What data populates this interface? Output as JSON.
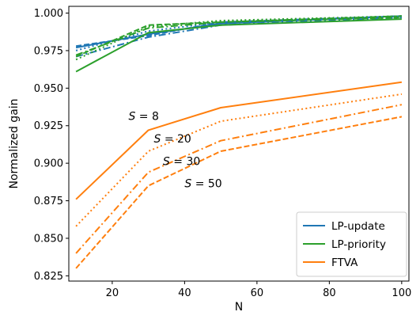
{
  "chart_data": {
    "type": "line",
    "title": "",
    "xlabel": "N",
    "ylabel": "Normalized gain",
    "xlim": [
      8,
      102
    ],
    "ylim": [
      0.8215,
      1.0045
    ],
    "xticks": [
      20,
      40,
      60,
      80,
      100
    ],
    "xtick_labels": [
      "20",
      "40",
      "60",
      "80",
      "100"
    ],
    "yticks": [
      0.825,
      0.85,
      0.875,
      0.9,
      0.925,
      0.95,
      0.975,
      1.0
    ],
    "ytick_labels": [
      "0.825",
      "0.850",
      "0.875",
      "0.900",
      "0.925",
      "0.950",
      "0.975",
      "1.000"
    ],
    "grid": false,
    "legend": {
      "placement": "lower-right",
      "entries": [
        {
          "label": "LP-update",
          "color": "#1f77b4"
        },
        {
          "label": "LP-priority",
          "color": "#2ca02c"
        },
        {
          "label": "FTVA",
          "color": "#ff7f0e"
        }
      ]
    },
    "annotations": [
      {
        "text": "S = 8",
        "x": 24.5,
        "y": 0.9315
      },
      {
        "text": "S = 20",
        "x": 31.5,
        "y": 0.9165
      },
      {
        "text": "S = 30",
        "x": 34,
        "y": 0.9015
      },
      {
        "text": "S = 50",
        "x": 40,
        "y": 0.8865
      }
    ],
    "series": [
      {
        "group": "LP-update",
        "S": 8,
        "style": "solid",
        "color": "#1f77b4",
        "x": [
          10,
          30,
          50,
          100
        ],
        "y": [
          0.977,
          0.986,
          0.993,
          0.998
        ]
      },
      {
        "group": "LP-update",
        "S": 20,
        "style": "dotted",
        "color": "#1f77b4",
        "x": [
          10,
          30,
          50,
          100
        ],
        "y": [
          0.975,
          0.988,
          0.994,
          0.998
        ]
      },
      {
        "group": "LP-update",
        "S": 30,
        "style": "dashdot",
        "color": "#1f77b4",
        "x": [
          10,
          30,
          50,
          100
        ],
        "y": [
          0.971,
          0.984,
          0.992,
          0.997
        ]
      },
      {
        "group": "LP-update",
        "S": 50,
        "style": "dashed",
        "color": "#1f77b4",
        "x": [
          10,
          30,
          50,
          100
        ],
        "y": [
          0.978,
          0.985,
          0.994,
          0.998
        ]
      },
      {
        "group": "LP-priority",
        "S": 8,
        "style": "solid",
        "color": "#2ca02c",
        "x": [
          10,
          30,
          50,
          100
        ],
        "y": [
          0.961,
          0.987,
          0.992,
          0.996
        ]
      },
      {
        "group": "LP-priority",
        "S": 20,
        "style": "dotted",
        "color": "#2ca02c",
        "x": [
          10,
          30,
          50,
          100
        ],
        "y": [
          0.969,
          0.991,
          0.995,
          0.998
        ]
      },
      {
        "group": "LP-priority",
        "S": 30,
        "style": "dashdot",
        "color": "#2ca02c",
        "x": [
          10,
          30,
          50,
          100
        ],
        "y": [
          0.972,
          0.99,
          0.994,
          0.998
        ]
      },
      {
        "group": "LP-priority",
        "S": 50,
        "style": "dashed",
        "color": "#2ca02c",
        "x": [
          10,
          30,
          50,
          100
        ],
        "y": [
          0.971,
          0.992,
          0.994,
          0.997
        ]
      },
      {
        "group": "FTVA",
        "S": 8,
        "style": "solid",
        "color": "#ff7f0e",
        "x": [
          10,
          30,
          50,
          100
        ],
        "y": [
          0.876,
          0.922,
          0.937,
          0.954
        ]
      },
      {
        "group": "FTVA",
        "S": 20,
        "style": "dotted",
        "color": "#ff7f0e",
        "x": [
          10,
          30,
          50,
          100
        ],
        "y": [
          0.858,
          0.908,
          0.928,
          0.946
        ]
      },
      {
        "group": "FTVA",
        "S": 30,
        "style": "dashdot",
        "color": "#ff7f0e",
        "x": [
          10,
          30,
          50,
          100
        ],
        "y": [
          0.84,
          0.894,
          0.915,
          0.939
        ]
      },
      {
        "group": "FTVA",
        "S": 50,
        "style": "dashed",
        "color": "#ff7f0e",
        "x": [
          10,
          30,
          50,
          100
        ],
        "y": [
          0.83,
          0.885,
          0.908,
          0.931
        ]
      }
    ]
  }
}
